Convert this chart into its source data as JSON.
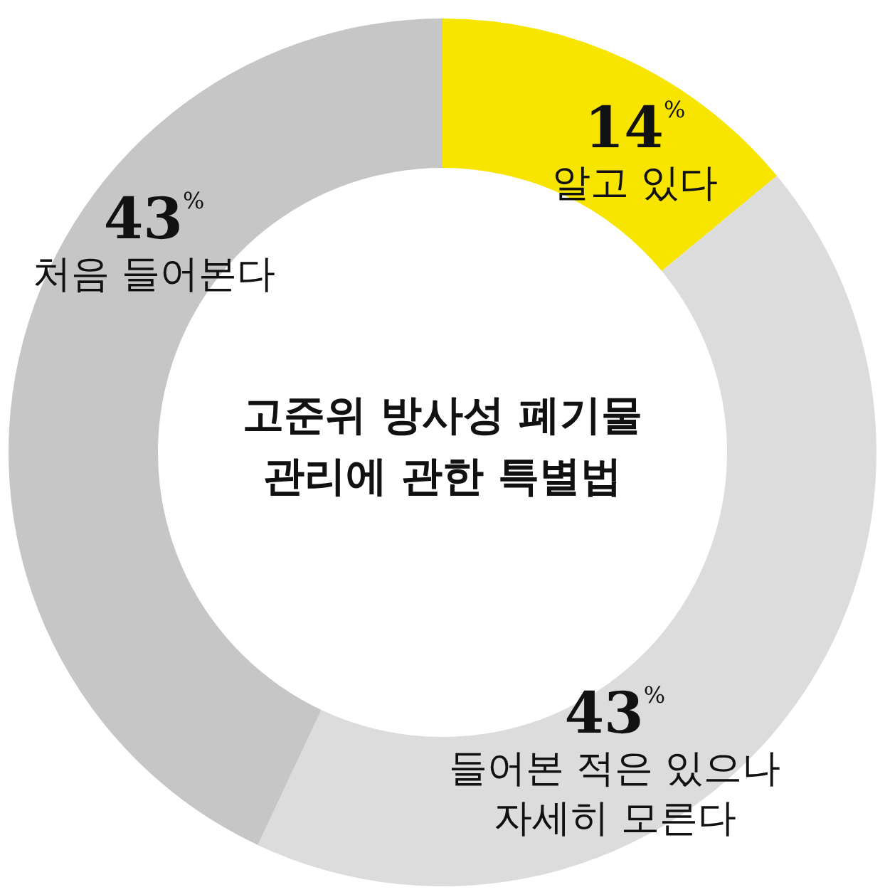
{
  "chart_data": {
    "type": "donut",
    "title": "고준위 방사성 폐기물 관리에 관한 특별법",
    "categories": [
      "알고 있다",
      "들어본 적은 있으나 자세히 모른다",
      "처음 들어본다"
    ],
    "values": [
      14,
      43,
      43
    ],
    "colors": [
      "#f7e500",
      "#dcdcdc",
      "#c6c6c6"
    ],
    "value_labels": [
      "14$^{%}$",
      "43$^{%}$",
      "43$^{%}$"
    ]
  }
}
